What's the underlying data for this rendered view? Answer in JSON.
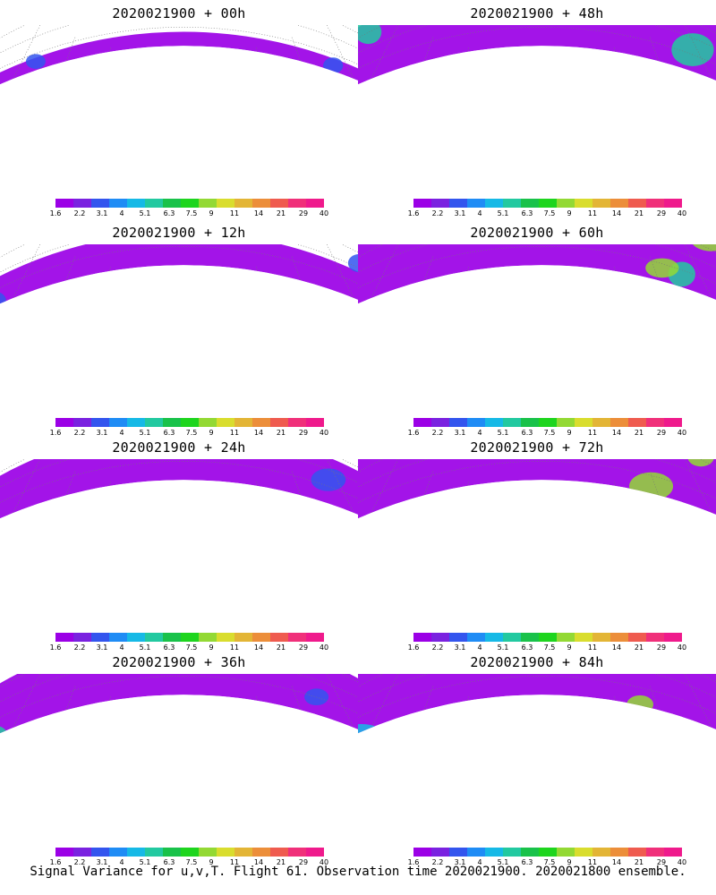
{
  "panels": [
    {
      "title": "2020021900 + 00h",
      "coverage": 0.15
    },
    {
      "title": "2020021900 + 48h",
      "coverage": 0.75
    },
    {
      "title": "2020021900 + 12h",
      "coverage": 0.35
    },
    {
      "title": "2020021900 + 60h",
      "coverage": 0.8
    },
    {
      "title": "2020021900 + 24h",
      "coverage": 0.55
    },
    {
      "title": "2020021900 + 72h",
      "coverage": 0.85
    },
    {
      "title": "2020021900 + 36h",
      "coverage": 0.65
    },
    {
      "title": "2020021900 + 84h",
      "coverage": 0.9
    }
  ],
  "colorbar": {
    "colors": [
      "#9b00e6",
      "#7a22e0",
      "#3355ee",
      "#1f8cf5",
      "#16b9e6",
      "#22c9a0",
      "#19c24a",
      "#1ed51e",
      "#93d934",
      "#d9dd2e",
      "#e3b536",
      "#ec8e3a",
      "#ef5b4f",
      "#f0307a",
      "#ef1a8c"
    ],
    "labels": [
      "1.6",
      "2.2",
      "3.1",
      "4",
      "5.1",
      "6.3",
      "7.5",
      "9",
      "11",
      "14",
      "21",
      "29",
      "40"
    ]
  },
  "footer": "Signal Variance for u,v,T. Flight 61. Observation time 2020021900. 2020021800 ensemble."
}
